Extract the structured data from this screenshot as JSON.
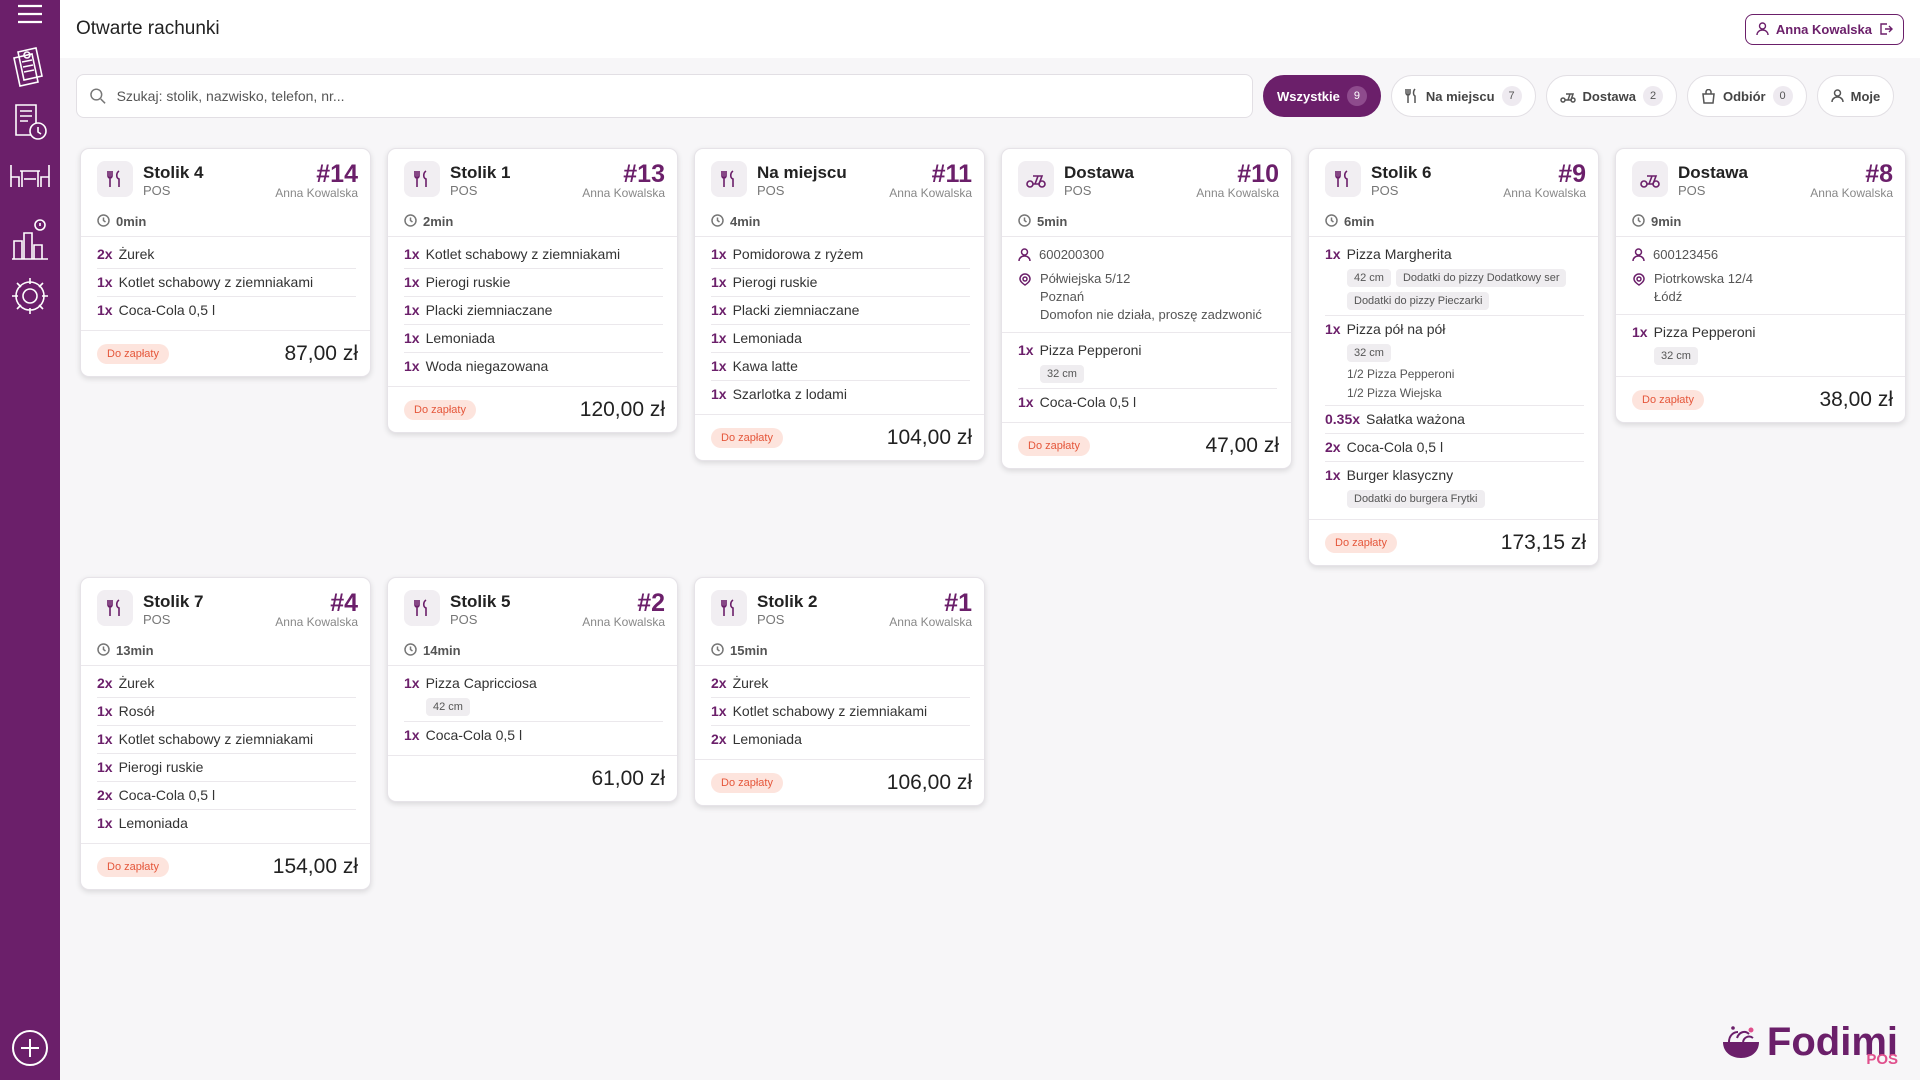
{
  "app": {
    "title": "Otwarte rachunki",
    "user_name": "Anna Kowalska"
  },
  "search": {
    "placeholder": "Szukaj: stolik, nazwisko, telefon, nr..."
  },
  "filters": [
    {
      "label": "Wszystkie",
      "count": "9"
    },
    {
      "label": "Na miejscu",
      "count": "7"
    },
    {
      "label": "Dostawa",
      "count": "2"
    },
    {
      "label": "Odbiór",
      "count": "0"
    },
    {
      "label": "Moje"
    }
  ],
  "cards": [
    {
      "title": "Stolik 4",
      "source": "POS",
      "number": "#14",
      "waiter": "Anna Kowalska",
      "time": "0min",
      "items": [
        {
          "qty": "2x",
          "name": "Żurek"
        },
        {
          "qty": "1x",
          "name": "Kotlet schabowy z ziemniakami"
        },
        {
          "qty": "1x",
          "name": "Coca-Cola 0,5 l"
        }
      ],
      "status": "Do zapłaty",
      "total": "87,00 zł"
    },
    {
      "title": "Stolik 1",
      "source": "POS",
      "number": "#13",
      "waiter": "Anna Kowalska",
      "time": "2min",
      "items": [
        {
          "qty": "1x",
          "name": "Kotlet schabowy z ziemniakami"
        },
        {
          "qty": "1x",
          "name": "Pierogi ruskie"
        },
        {
          "qty": "1x",
          "name": "Placki ziemniaczane"
        },
        {
          "qty": "1x",
          "name": "Lemoniada"
        },
        {
          "qty": "1x",
          "name": "Woda niegazowana"
        }
      ],
      "status": "Do zapłaty",
      "total": "120,00 zł"
    },
    {
      "title": "Na miejscu",
      "source": "POS",
      "number": "#11",
      "waiter": "Anna Kowalska",
      "time": "4min",
      "items": [
        {
          "qty": "1x",
          "name": "Pomidorowa z ryżem"
        },
        {
          "qty": "1x",
          "name": "Pierogi ruskie"
        },
        {
          "qty": "1x",
          "name": "Placki ziemniaczane"
        },
        {
          "qty": "1x",
          "name": "Lemoniada"
        },
        {
          "qty": "1x",
          "name": "Kawa latte"
        },
        {
          "qty": "1x",
          "name": "Szarlotka z lodami"
        }
      ],
      "status": "Do zapłaty",
      "total": "104,00 zł"
    },
    {
      "title": "Dostawa",
      "source": "POS",
      "number": "#10",
      "waiter": "Anna Kowalska",
      "time": "5min",
      "phone": "600200300",
      "address": [
        "Półwiejska 5/12",
        "Poznań",
        "Domofon nie działa, proszę zadzwonić"
      ],
      "items": [
        {
          "qty": "1x",
          "name": "Pizza Pepperoni",
          "tags": [
            "32 cm"
          ]
        },
        {
          "qty": "1x",
          "name": "Coca-Cola 0,5 l"
        }
      ],
      "status": "Do zapłaty",
      "total": "47,00 zł"
    },
    {
      "title": "Stolik 6",
      "source": "POS",
      "number": "#9",
      "waiter": "Anna Kowalska",
      "time": "6min",
      "items": [
        {
          "qty": "1x",
          "name": "Pizza Margherita",
          "tags": [
            "42 cm",
            "Dodatki do pizzy Dodatkowy ser",
            "Dodatki do pizzy Pieczarki"
          ]
        },
        {
          "qty": "1x",
          "name": "Pizza pół na pół",
          "tags": [
            "32 cm"
          ],
          "sublines": [
            "1/2 Pizza Pepperoni",
            "1/2 Pizza Wiejska"
          ]
        },
        {
          "qty": "0.35x",
          "name": "Sałatka ważona"
        },
        {
          "qty": "2x",
          "name": "Coca-Cola 0,5 l"
        },
        {
          "qty": "1x",
          "name": "Burger klasyczny",
          "tags": [
            "Dodatki do burgera Frytki"
          ]
        }
      ],
      "status": "Do zapłaty",
      "total": "173,15 zł"
    },
    {
      "title": "Dostawa",
      "source": "POS",
      "number": "#8",
      "waiter": "Anna Kowalska",
      "time": "9min",
      "phone": "600123456",
      "address": [
        "Piotrkowska 12/4",
        "Łódź"
      ],
      "items": [
        {
          "qty": "1x",
          "name": "Pizza Pepperoni",
          "tags": [
            "32 cm"
          ]
        }
      ],
      "status": "Do zapłaty",
      "total": "38,00 zł"
    },
    {
      "title": "Stolik 7",
      "source": "POS",
      "number": "#4",
      "waiter": "Anna Kowalska",
      "time": "13min",
      "items": [
        {
          "qty": "2x",
          "name": "Żurek"
        },
        {
          "qty": "1x",
          "name": "Rosół"
        },
        {
          "qty": "1x",
          "name": "Kotlet schabowy z ziemniakami"
        },
        {
          "qty": "1x",
          "name": "Pierogi ruskie"
        },
        {
          "qty": "2x",
          "name": "Coca-Cola 0,5 l"
        },
        {
          "qty": "1x",
          "name": "Lemoniada"
        }
      ],
      "status": "Do zapłaty",
      "total": "154,00 zł"
    },
    {
      "title": "Stolik 5",
      "source": "POS",
      "number": "#2",
      "waiter": "Anna Kowalska",
      "time": "14min",
      "items": [
        {
          "qty": "1x",
          "name": "Pizza Capricciosa",
          "tags": [
            "42 cm"
          ]
        },
        {
          "qty": "1x",
          "name": "Coca-Cola 0,5 l"
        }
      ],
      "status": "",
      "total": "61,00 zł"
    },
    {
      "title": "Stolik 2",
      "source": "POS",
      "number": "#1",
      "waiter": "Anna Kowalska",
      "time": "15min",
      "items": [
        {
          "qty": "2x",
          "name": "Żurek"
        },
        {
          "qty": "1x",
          "name": "Kotlet schabowy z ziemniakami"
        },
        {
          "qty": "2x",
          "name": "Lemoniada"
        }
      ],
      "status": "Do zapłaty",
      "total": "106,00 zł"
    }
  ],
  "logo": {
    "name": "Fodimi",
    "suffix": "POS"
  }
}
